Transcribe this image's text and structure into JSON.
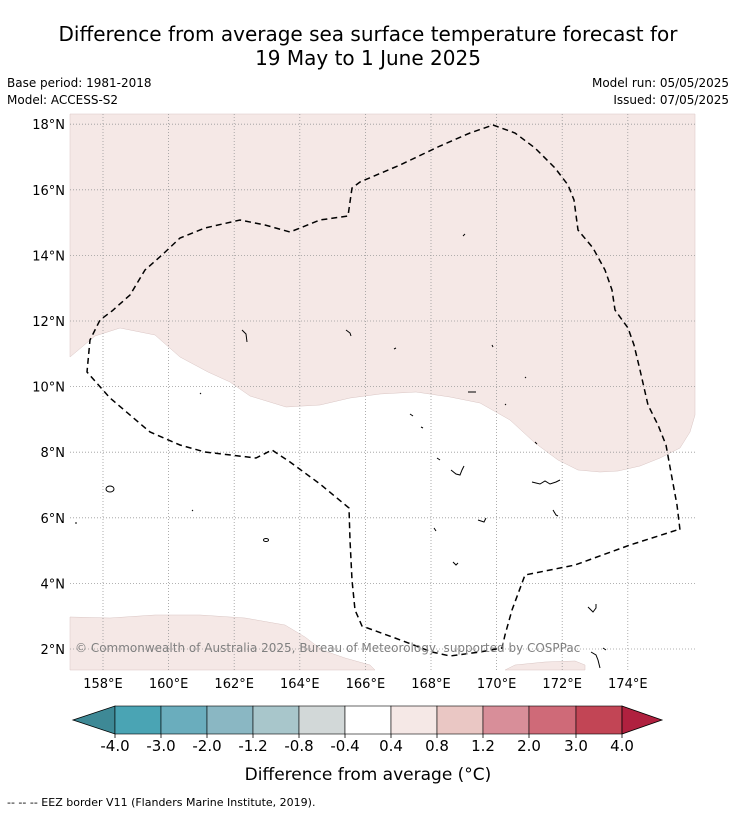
{
  "title": {
    "line1": "Difference from average sea surface temperature forecast for",
    "line2": "19 May to 1 June 2025"
  },
  "meta": {
    "base_period": "Base period: 1981-2018",
    "model": "Model: ACCESS-S2",
    "model_run": "Model run: 05/05/2025",
    "issued": "Issued: 07/05/2025"
  },
  "map": {
    "lat_ticks": [
      "2°N",
      "4°N",
      "6°N",
      "8°N",
      "10°N",
      "12°N",
      "14°N",
      "16°N",
      "18°N"
    ],
    "lon_ticks": [
      "158°E",
      "160°E",
      "162°E",
      "164°E",
      "166°E",
      "168°E",
      "170°E",
      "172°E",
      "174°E"
    ],
    "colors": {
      "anomaly_0.4_0.8": "#f5e8e6",
      "land_outline": "#000000",
      "grid": "#999999",
      "eez_border": "#000000"
    },
    "copyright": "© Commonwealth of Australia 2025, Bureau of Meteorology, supported by COSPPac"
  },
  "colorbar": {
    "ticks": [
      "-4.0",
      "-3.0",
      "-2.0",
      "-1.2",
      "-0.8",
      "-0.4",
      "0.4",
      "0.8",
      "1.2",
      "2.0",
      "3.0",
      "4.0"
    ],
    "colors": [
      "#3e8996",
      "#4aa4b4",
      "#6aadbd",
      "#8ab7c3",
      "#a8c6cb",
      "#d2d8d8",
      "#ffffff",
      "#f5e8e6",
      "#eac7c4",
      "#d88e99",
      "#cf6a78",
      "#c24555",
      "#b0213f"
    ],
    "label": "Difference from average (°C)"
  },
  "footnote": "--  --  -- EEZ border V11 (Flanders Marine Institute, 2019)."
}
